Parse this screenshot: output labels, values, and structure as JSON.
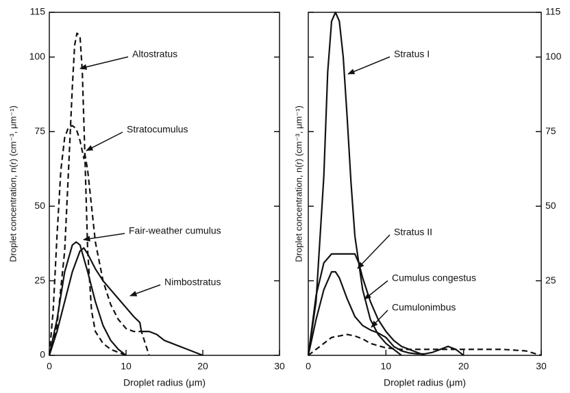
{
  "chart_data": [
    {
      "type": "line",
      "xlabel": "Droplet radius (μm)",
      "ylabel": "Droplet concentration, n(r) (cm⁻³, μm⁻¹)",
      "xlim": [
        0,
        30
      ],
      "ylim": [
        0,
        115
      ],
      "xticks": [
        0,
        10,
        20,
        30
      ],
      "yticks": [
        0,
        25,
        50,
        75,
        100,
        115
      ],
      "yaxis_side": "left",
      "series": [
        {
          "name": "Altostratus",
          "color": "#111111",
          "linestyle": "dashed",
          "x": [
            0,
            1,
            2,
            2.5,
            3,
            3.3,
            3.6,
            4,
            4.3,
            4.6,
            5,
            5.5,
            6,
            7,
            8,
            9,
            10
          ],
          "values": [
            0,
            10,
            35,
            62,
            90,
            104,
            108,
            107,
            95,
            70,
            35,
            15,
            8,
            4,
            2,
            1,
            0
          ]
        },
        {
          "name": "Stratocumulus",
          "color": "#111111",
          "linestyle": "dashed",
          "x": [
            0,
            0.5,
            1,
            1.5,
            2,
            2.5,
            3,
            3.5,
            4,
            4.5,
            4.6,
            5,
            5.5,
            6,
            7,
            8,
            9,
            10,
            11,
            12,
            12.5,
            13
          ],
          "values": [
            0,
            15,
            40,
            62,
            73,
            76.5,
            77,
            76,
            72,
            66,
            68,
            62,
            50,
            38,
            25,
            17,
            12,
            9,
            8,
            8,
            4,
            0
          ]
        },
        {
          "name": "Fair-weather cumulus",
          "color": "#111111",
          "linestyle": "solid",
          "x": [
            0,
            1,
            2,
            3,
            3.5,
            4,
            5,
            6,
            7,
            8,
            9,
            10
          ],
          "values": [
            0,
            12,
            28,
            37,
            38,
            37,
            28,
            18,
            10,
            5,
            2,
            0
          ]
        },
        {
          "name": "Nimbostratus",
          "color": "#111111",
          "linestyle": "solid",
          "x": [
            0,
            1,
            2,
            3,
            4,
            4.5,
            5,
            6,
            7,
            8,
            9,
            10,
            11,
            11.8,
            12,
            13,
            14,
            15,
            16,
            17,
            18,
            19,
            20
          ],
          "values": [
            0,
            8,
            18,
            28,
            35,
            36,
            34,
            29,
            25,
            22,
            19,
            16,
            13,
            11,
            8,
            8,
            7,
            5,
            4,
            3,
            2,
            1,
            0
          ]
        }
      ]
    },
    {
      "type": "line",
      "xlabel": "Droplet radius (μm)",
      "ylabel": "Droplet concentration, n(r) (cm⁻³, μm⁻¹)",
      "xlim": [
        0,
        30
      ],
      "ylim": [
        0,
        115
      ],
      "xticks": [
        0,
        10,
        20,
        30
      ],
      "yticks": [
        25,
        50,
        75,
        100,
        115
      ],
      "yaxis_side": "right",
      "series": [
        {
          "name": "Stratus I",
          "color": "#111111",
          "linestyle": "solid",
          "x": [
            0,
            1,
            2,
            2.5,
            3,
            3.5,
            4,
            4.5,
            5,
            5.5,
            6,
            7,
            8,
            9,
            10,
            11,
            12
          ],
          "values": [
            0,
            18,
            60,
            95,
            112,
            115,
            112,
            100,
            80,
            58,
            40,
            22,
            12,
            7,
            4,
            2,
            0
          ]
        },
        {
          "name": "Stratus II",
          "color": "#111111",
          "linestyle": "solid",
          "x": [
            0,
            1,
            2,
            3,
            4,
            5,
            6,
            6.5,
            7,
            8,
            9,
            10,
            11,
            12,
            13,
            14,
            15
          ],
          "values": [
            0,
            20,
            31,
            34,
            34,
            34,
            34,
            31,
            26,
            18,
            12,
            8,
            5,
            3,
            2,
            1,
            0
          ]
        },
        {
          "name": "Cumulus congestus",
          "color": "#111111",
          "linestyle": "solid",
          "x": [
            0,
            1,
            2,
            3,
            3.5,
            4,
            5,
            6,
            7,
            8,
            9,
            10,
            11,
            12,
            13,
            14,
            15,
            16,
            17,
            18,
            19,
            20
          ],
          "values": [
            0,
            12,
            22,
            28,
            28,
            26,
            19,
            13,
            10,
            8.5,
            7.5,
            6,
            3,
            1.5,
            0.8,
            0.5,
            0.5,
            1,
            2,
            3,
            2,
            0
          ]
        },
        {
          "name": "Cumulonimbus",
          "color": "#111111",
          "linestyle": "dashed",
          "x": [
            0,
            1,
            2,
            3,
            4,
            5,
            6,
            7,
            8,
            10,
            12,
            15,
            20,
            25,
            28,
            30
          ],
          "values": [
            0,
            2,
            4,
            6,
            6.5,
            7,
            6.5,
            5.5,
            4,
            2.5,
            2,
            2,
            2,
            2,
            1.5,
            0
          ]
        }
      ]
    }
  ]
}
